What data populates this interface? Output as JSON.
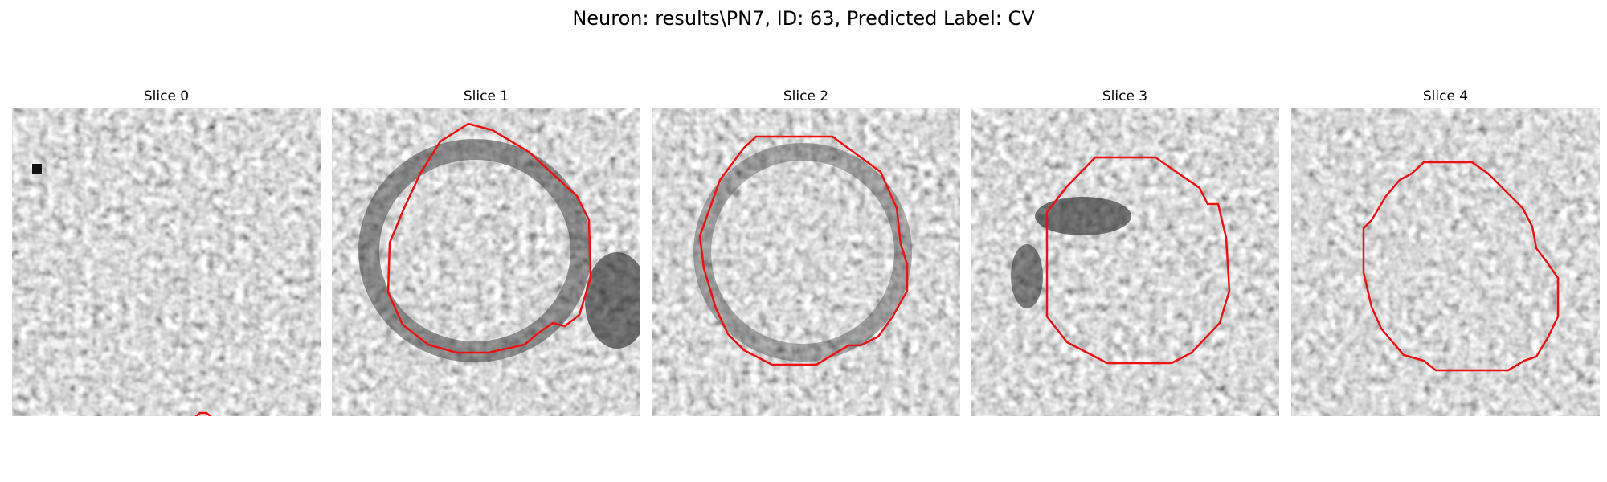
{
  "figure": {
    "suptitle": "Neuron: results\\PN7, ID: 63, Predicted Label: CV",
    "contour_color": "#ee1111",
    "panels": [
      {
        "title": "Slice 0"
      },
      {
        "title": "Slice 1"
      },
      {
        "title": "Slice 2"
      },
      {
        "title": "Slice 3"
      },
      {
        "title": "Slice 4"
      }
    ]
  }
}
